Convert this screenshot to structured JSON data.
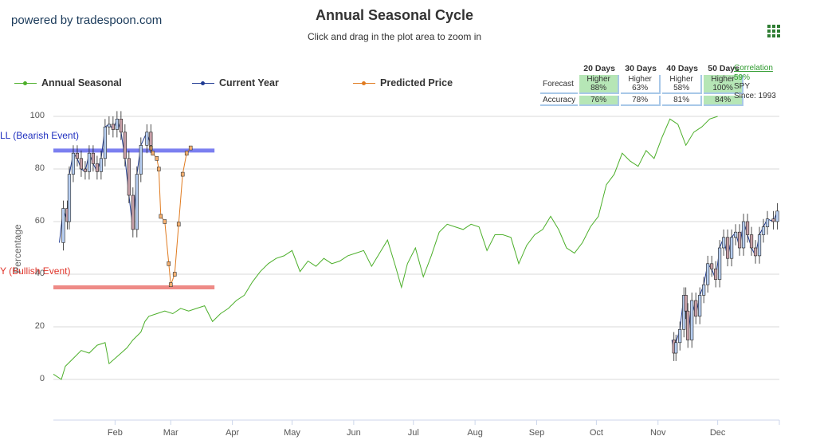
{
  "header": {
    "powered_by": "powered by tradespoon.com",
    "title": "Annual Seasonal Cycle",
    "subtitle": "Click and drag in the plot area to zoom in",
    "menu_icon": "menu-grid-icon"
  },
  "legend": [
    {
      "label": "Annual Seasonal",
      "color": "#4caf2a"
    },
    {
      "label": "Current Year",
      "color": "#1f3a93"
    },
    {
      "label": "Predicted Price",
      "color": "#e07b20"
    }
  ],
  "stats": {
    "columns": [
      "20 Days",
      "30 Days",
      "40 Days",
      "50 Days"
    ],
    "forecast_label": "Forecast",
    "accuracy_label": "Accuracy",
    "forecast": [
      {
        "direction": "Higher",
        "pct": "88%",
        "highlight": true
      },
      {
        "direction": "Higher",
        "pct": "63%",
        "highlight": false
      },
      {
        "direction": "Higher",
        "pct": "58%",
        "highlight": false
      },
      {
        "direction": "Higher",
        "pct": "100%",
        "highlight": true
      }
    ],
    "accuracy": [
      {
        "pct": "76%",
        "highlight": true
      },
      {
        "pct": "78%",
        "highlight": false
      },
      {
        "pct": "81%",
        "highlight": false
      },
      {
        "pct": "84%",
        "highlight": true
      }
    ],
    "correlation_label": "Correlation",
    "correlation_value": "59%",
    "symbol": "SPY",
    "since": "Since: 1993"
  },
  "plot_labels": {
    "sell": "LL (Bearish Event)",
    "buy": "Y (Bullish Event)"
  },
  "colors": {
    "seasonal": "#4caf2a",
    "current": "#1f3a93",
    "predicted": "#e07b20",
    "sell_band": "#7b7ff0",
    "buy_band": "#ee8a86",
    "sell_text": "#1f2fbf",
    "buy_text": "#e0352b",
    "candle_up": "#b6cdf0",
    "candle_down": "#c8a0a8"
  },
  "chart_data": {
    "type": "line",
    "title": "Annual Seasonal Cycle",
    "ylabel": "Percentage",
    "ylim": [
      -15,
      100
    ],
    "yticks": [
      0,
      20,
      40,
      60,
      80,
      100
    ],
    "x_domain_days": [
      0,
      365
    ],
    "month_ticks": [
      {
        "label": "Feb",
        "day": 31
      },
      {
        "label": "Mar",
        "day": 59
      },
      {
        "label": "Apr",
        "day": 90
      },
      {
        "label": "May",
        "day": 120
      },
      {
        "label": "Jun",
        "day": 151
      },
      {
        "label": "Jul",
        "day": 181
      },
      {
        "label": "Aug",
        "day": 212
      },
      {
        "label": "Sep",
        "day": 243
      },
      {
        "label": "Oct",
        "day": 273
      },
      {
        "label": "Nov",
        "day": 304
      },
      {
        "label": "Dec",
        "day": 334
      }
    ],
    "sell_level": 87,
    "buy_level": 35,
    "sell_band_days": [
      0,
      81
    ],
    "buy_band_days": [
      0,
      81
    ],
    "series": [
      {
        "name": "Annual Seasonal",
        "points": [
          [
            0,
            2
          ],
          [
            4,
            0
          ],
          [
            6,
            5
          ],
          [
            10,
            8
          ],
          [
            14,
            11
          ],
          [
            18,
            10
          ],
          [
            22,
            13
          ],
          [
            26,
            14
          ],
          [
            28,
            6
          ],
          [
            31,
            8
          ],
          [
            34,
            10
          ],
          [
            37,
            12
          ],
          [
            40,
            15
          ],
          [
            44,
            18
          ],
          [
            46,
            22
          ],
          [
            48,
            24
          ],
          [
            52,
            25
          ],
          [
            56,
            26
          ],
          [
            60,
            25
          ],
          [
            64,
            27
          ],
          [
            68,
            26
          ],
          [
            72,
            27
          ],
          [
            76,
            28
          ],
          [
            80,
            22
          ],
          [
            84,
            25
          ],
          [
            88,
            27
          ],
          [
            92,
            30
          ],
          [
            96,
            32
          ],
          [
            100,
            37
          ],
          [
            104,
            41
          ],
          [
            108,
            44
          ],
          [
            112,
            46
          ],
          [
            116,
            47
          ],
          [
            120,
            49
          ],
          [
            124,
            41
          ],
          [
            128,
            45
          ],
          [
            132,
            43
          ],
          [
            136,
            46
          ],
          [
            140,
            44
          ],
          [
            144,
            45
          ],
          [
            148,
            47
          ],
          [
            152,
            48
          ],
          [
            156,
            49
          ],
          [
            160,
            43
          ],
          [
            164,
            48
          ],
          [
            168,
            53
          ],
          [
            172,
            43
          ],
          [
            175,
            35
          ],
          [
            178,
            44
          ],
          [
            182,
            50
          ],
          [
            186,
            39
          ],
          [
            190,
            47
          ],
          [
            194,
            56
          ],
          [
            198,
            59
          ],
          [
            202,
            58
          ],
          [
            206,
            57
          ],
          [
            210,
            59
          ],
          [
            214,
            58
          ],
          [
            218,
            49
          ],
          [
            222,
            55
          ],
          [
            226,
            55
          ],
          [
            230,
            54
          ],
          [
            234,
            44
          ],
          [
            238,
            51
          ],
          [
            242,
            55
          ],
          [
            246,
            57
          ],
          [
            250,
            62
          ],
          [
            254,
            57
          ],
          [
            258,
            50
          ],
          [
            262,
            48
          ],
          [
            266,
            52
          ],
          [
            270,
            58
          ],
          [
            274,
            62
          ],
          [
            278,
            74
          ],
          [
            282,
            78
          ],
          [
            286,
            86
          ],
          [
            290,
            83
          ],
          [
            294,
            81
          ],
          [
            298,
            87
          ],
          [
            302,
            84
          ],
          [
            306,
            92
          ],
          [
            310,
            99
          ],
          [
            314,
            97
          ],
          [
            318,
            89
          ],
          [
            322,
            94
          ],
          [
            326,
            96
          ],
          [
            330,
            99
          ],
          [
            334,
            100
          ]
        ]
      },
      {
        "name": "Current Year",
        "points": [
          [
            3,
            52
          ],
          [
            5,
            65
          ],
          [
            7,
            60
          ],
          [
            8,
            78
          ],
          [
            10,
            86
          ],
          [
            12,
            84
          ],
          [
            14,
            80
          ],
          [
            16,
            79
          ],
          [
            18,
            86
          ],
          [
            20,
            82
          ],
          [
            22,
            79
          ],
          [
            24,
            84
          ],
          [
            26,
            96
          ],
          [
            28,
            97
          ],
          [
            30,
            95
          ],
          [
            32,
            99
          ],
          [
            34,
            94
          ],
          [
            36,
            84
          ],
          [
            38,
            70
          ],
          [
            40,
            57
          ],
          [
            42,
            78
          ],
          [
            44,
            89
          ],
          [
            47,
            94
          ],
          [
            49,
            89
          ],
          [
            311,
            15
          ],
          [
            312,
            10
          ],
          [
            313,
            14
          ],
          [
            315,
            19
          ],
          [
            317,
            32
          ],
          [
            318,
            26
          ],
          [
            319,
            15
          ],
          [
            321,
            30
          ],
          [
            323,
            24
          ],
          [
            325,
            32
          ],
          [
            327,
            36
          ],
          [
            329,
            44
          ],
          [
            331,
            42
          ],
          [
            333,
            38
          ],
          [
            335,
            50
          ],
          [
            337,
            54
          ],
          [
            339,
            46
          ],
          [
            341,
            54
          ],
          [
            343,
            56
          ],
          [
            345,
            50
          ],
          [
            347,
            60
          ],
          [
            349,
            55
          ],
          [
            351,
            50
          ],
          [
            353,
            47
          ],
          [
            355,
            55
          ],
          [
            357,
            58
          ],
          [
            359,
            61
          ],
          [
            362,
            60
          ],
          [
            364,
            64
          ]
        ]
      },
      {
        "name": "Predicted Price",
        "points": [
          [
            49,
            88
          ],
          [
            50,
            86
          ],
          [
            52,
            84
          ],
          [
            53,
            80
          ],
          [
            54,
            62
          ],
          [
            56,
            60
          ],
          [
            58,
            44
          ],
          [
            59,
            36
          ],
          [
            61,
            40
          ],
          [
            63,
            59
          ],
          [
            65,
            78
          ],
          [
            67,
            86
          ],
          [
            69,
            88
          ]
        ]
      }
    ]
  }
}
